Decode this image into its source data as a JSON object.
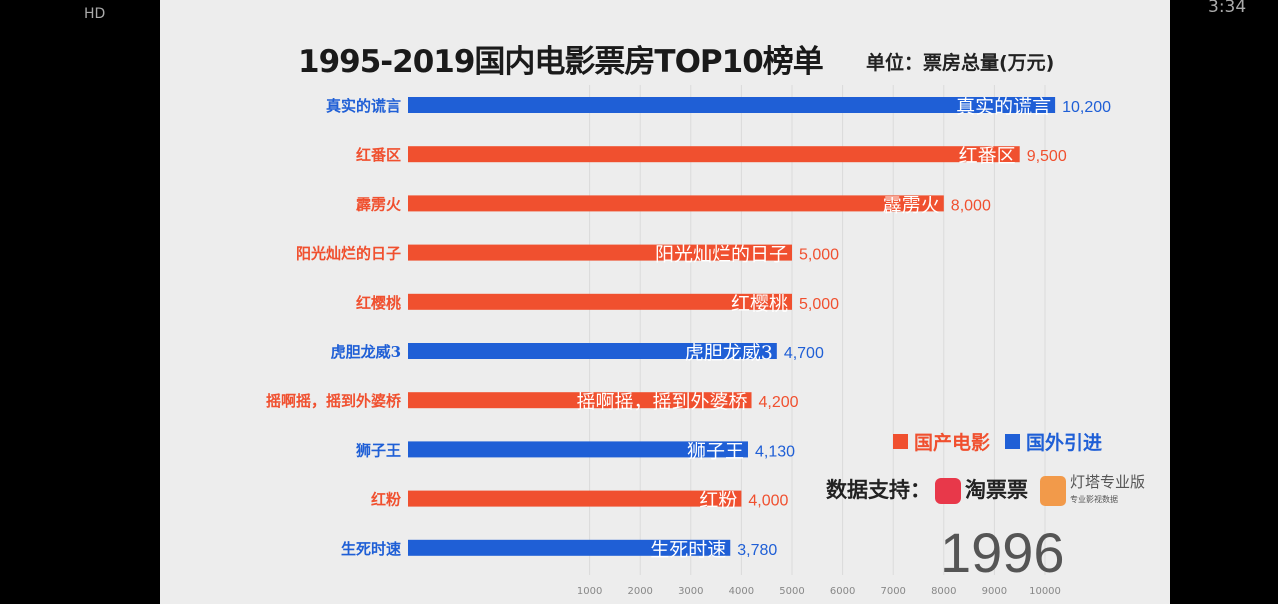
{
  "status_bar": {
    "network": "HD",
    "time": "3:34"
  },
  "chart_data": {
    "type": "bar",
    "title": "1995-2019国内电影票房TOP10榜单",
    "unit": "单位：票房总量(万元)",
    "categories": [
      "真实的谎言",
      "红番区",
      "霹雳火",
      "阳光灿烂的日子",
      "红樱桃",
      "虎胆龙威3",
      "摇啊摇，摇到外婆桥",
      "狮子王",
      "红粉",
      "生死时速"
    ],
    "values": [
      10200,
      9500,
      8000,
      5000,
      5000,
      4700,
      4200,
      4130,
      4000,
      3780
    ],
    "value_labels": [
      "10,200",
      "9,500",
      "8,000",
      "5,000",
      "5,000",
      "4,700",
      "4,200",
      "4,130",
      "4,000",
      "3,780"
    ],
    "groups": [
      "国外引进",
      "国产电影",
      "国产电影",
      "国产电影",
      "国产电影",
      "国外引进",
      "国产电影",
      "国外引进",
      "国产电影",
      "国外引进"
    ],
    "legend": [
      {
        "name": "国产电影",
        "color": "#f0502f"
      },
      {
        "name": "国外引进",
        "color": "#1f5fd6"
      }
    ],
    "xticks": [
      1000,
      2000,
      3000,
      4000,
      5000,
      6000,
      7000,
      8000,
      9000,
      10000
    ],
    "xlim": [
      0,
      10000
    ],
    "grid": true,
    "legend_position": "right",
    "year": "1996"
  },
  "source": {
    "label": "数据支持：",
    "brand1": "淘票票",
    "brand2": "灯塔专业版",
    "brand2_sub": "专业影视数据"
  }
}
